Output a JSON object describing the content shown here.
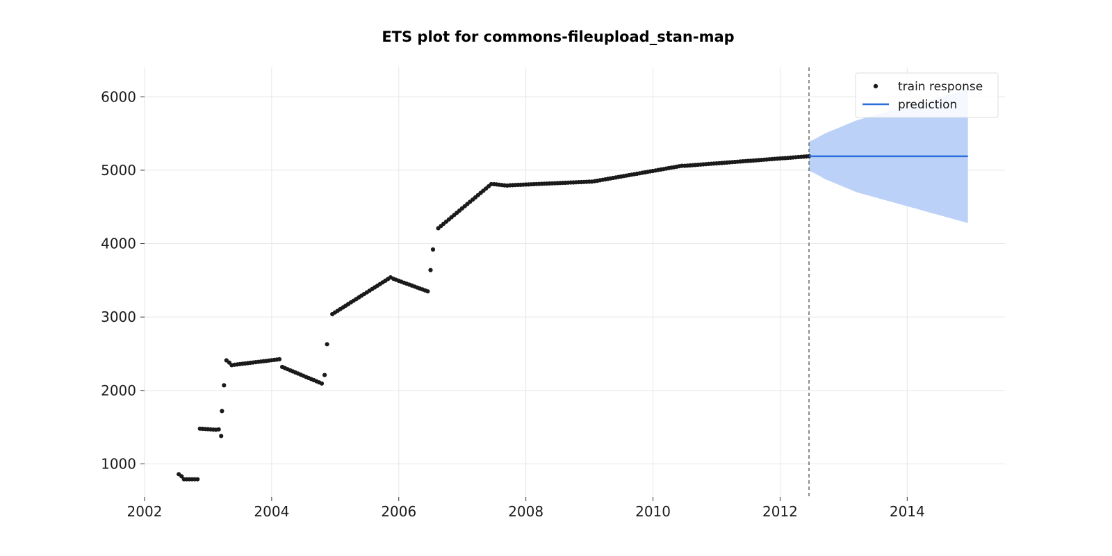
{
  "chart_data": {
    "type": "scatter",
    "title": "ETS plot for commons-fileupload_stan-map",
    "xlabel": "",
    "ylabel": "",
    "x_ticks": [
      "2002",
      "2004",
      "2006",
      "2008",
      "2010",
      "2012",
      "2014"
    ],
    "y_ticks": [
      "1000",
      "2000",
      "3000",
      "4000",
      "5000",
      "6000"
    ],
    "xlim": [
      "2002-01-01",
      "2015-07-15"
    ],
    "ylim": [
      550,
      6400
    ],
    "grid": true,
    "legend": {
      "position": "top-right",
      "entries": [
        "train response",
        "prediction"
      ]
    },
    "colors": {
      "train": "#1a1a1a",
      "prediction": "#2a6fdb",
      "interval": "#bcd1f7",
      "cutoff": "#666666"
    },
    "cutoff_date": "2012-06-15",
    "train_response": {
      "name": "train response",
      "segments": [
        {
          "start": "2002-07-15",
          "end": "2002-07-15",
          "y0": 860,
          "y1": 860
        },
        {
          "start": "2002-08-01",
          "end": "2002-08-01",
          "y0": 830,
          "y1": 830
        },
        {
          "start": "2002-08-15",
          "end": "2002-10-15",
          "y0": 790,
          "y1": 790
        },
        {
          "start": "2002-11-01",
          "end": "2002-11-01",
          "y0": 790,
          "y1": 790
        },
        {
          "start": "2002-11-15",
          "end": "2003-02-15",
          "y0": 1480,
          "y1": 1465
        },
        {
          "start": "2003-03-01",
          "end": "2003-03-01",
          "y0": 1470,
          "y1": 1470
        },
        {
          "start": "2003-03-15",
          "end": "2003-03-15",
          "y0": 1380,
          "y1": 1380
        },
        {
          "start": "2003-03-20",
          "end": "2003-03-20",
          "y0": 1720,
          "y1": 1720
        },
        {
          "start": "2003-04-01",
          "end": "2003-04-01",
          "y0": 2070,
          "y1": 2070
        },
        {
          "start": "2003-04-15",
          "end": "2003-04-15",
          "y0": 2410,
          "y1": 2410
        },
        {
          "start": "2003-05-01",
          "end": "2003-05-15",
          "y0": 2380,
          "y1": 2345
        },
        {
          "start": "2003-06-01",
          "end": "2004-02-15",
          "y0": 2350,
          "y1": 2425
        },
        {
          "start": "2004-03-01",
          "end": "2004-10-15",
          "y0": 2320,
          "y1": 2095
        },
        {
          "start": "2004-11-01",
          "end": "2004-11-01",
          "y0": 2210,
          "y1": 2210
        },
        {
          "start": "2004-11-15",
          "end": "2004-11-15",
          "y0": 2630,
          "y1": 2630
        },
        {
          "start": "2004-12-15",
          "end": "2005-11-15",
          "y0": 3040,
          "y1": 3540
        },
        {
          "start": "2005-12-01",
          "end": "2006-06-15",
          "y0": 3520,
          "y1": 3350
        },
        {
          "start": "2006-07-01",
          "end": "2006-07-01",
          "y0": 3640,
          "y1": 3640
        },
        {
          "start": "2006-07-15",
          "end": "2006-07-15",
          "y0": 3920,
          "y1": 3920
        },
        {
          "start": "2006-08-15",
          "end": "2007-06-15",
          "y0": 4210,
          "y1": 4810
        },
        {
          "start": "2007-07-01",
          "end": "2007-09-15",
          "y0": 4810,
          "y1": 4790
        },
        {
          "start": "2007-10-01",
          "end": "2009-01-15",
          "y0": 4795,
          "y1": 4845
        },
        {
          "start": "2009-02-01",
          "end": "2010-06-15",
          "y0": 4850,
          "y1": 5060
        },
        {
          "start": "2010-07-01",
          "end": "2012-06-15",
          "y0": 5060,
          "y1": 5190
        }
      ]
    },
    "prediction": {
      "name": "prediction",
      "start": "2012-06-15",
      "end": "2014-12-15",
      "value": 5190,
      "interval_upper": [
        5390,
        5420,
        5460,
        5500,
        5530,
        5560,
        5590,
        5620,
        5650,
        5680,
        5700,
        5720,
        5740,
        5760,
        5780,
        5800,
        5820,
        5840,
        5860,
        5880,
        5900,
        5920,
        5940,
        5960,
        5980,
        6000,
        6020,
        6040,
        6060,
        6080,
        6100
      ],
      "interval_lower": [
        4990,
        4960,
        4920,
        4880,
        4850,
        4820,
        4790,
        4760,
        4730,
        4700,
        4680,
        4660,
        4640,
        4620,
        4600,
        4580,
        4560,
        4540,
        4520,
        4500,
        4480,
        4460,
        4440,
        4420,
        4400,
        4380,
        4360,
        4340,
        4320,
        4300,
        4280
      ]
    }
  }
}
